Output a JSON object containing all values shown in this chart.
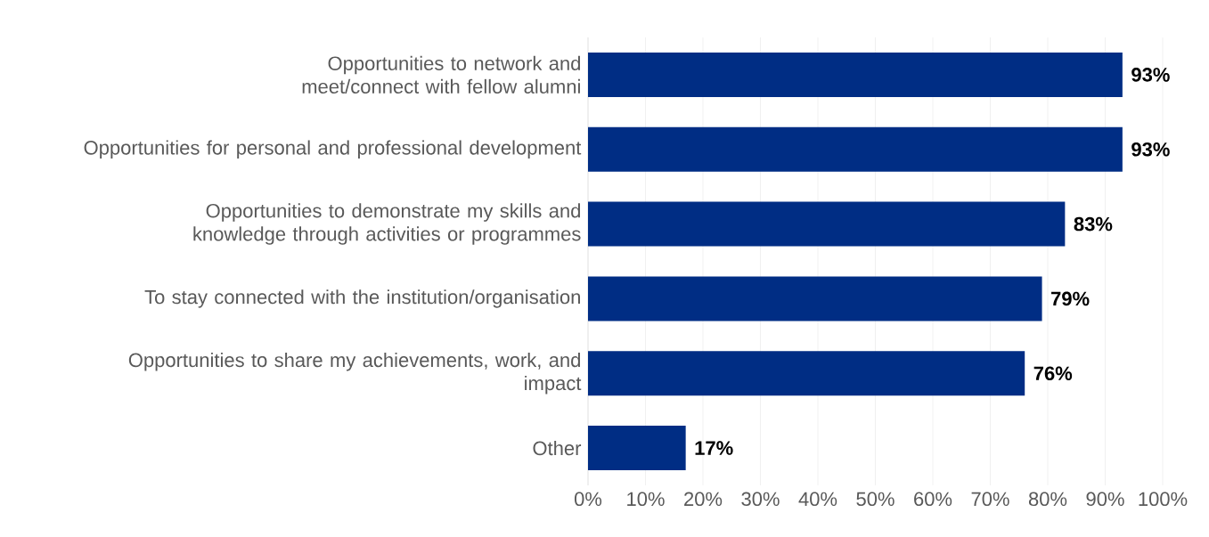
{
  "chart_data": {
    "type": "bar",
    "orientation": "horizontal",
    "categories": [
      "Opportunities to network and meet/connect with fellow alumni",
      "Opportunities for personal and professional development",
      "Opportunities to demonstrate my skills and knowledge through activities or programmes",
      "To stay connected with the institution/organisation",
      "Opportunities to share my achievements, work, and impact",
      "Other"
    ],
    "values": [
      93,
      93,
      83,
      79,
      76,
      17
    ],
    "value_labels": [
      "93%",
      "93%",
      "83%",
      "79%",
      "76%",
      "17%"
    ],
    "color": "#002d84",
    "xlim": [
      0,
      100
    ],
    "xticks": [
      {
        "value": 0,
        "label": "0%"
      },
      {
        "value": 10,
        "label": "10%"
      },
      {
        "value": 20,
        "label": "20%"
      },
      {
        "value": 30,
        "label": "30%"
      },
      {
        "value": 40,
        "label": "40%"
      },
      {
        "value": 50,
        "label": "50%"
      },
      {
        "value": 60,
        "label": "60%"
      },
      {
        "value": 70,
        "label": "70%"
      },
      {
        "value": 80,
        "label": "80%"
      },
      {
        "value": 90,
        "label": "90%"
      },
      {
        "value": 100,
        "label": "100%"
      }
    ],
    "grid": "x"
  }
}
